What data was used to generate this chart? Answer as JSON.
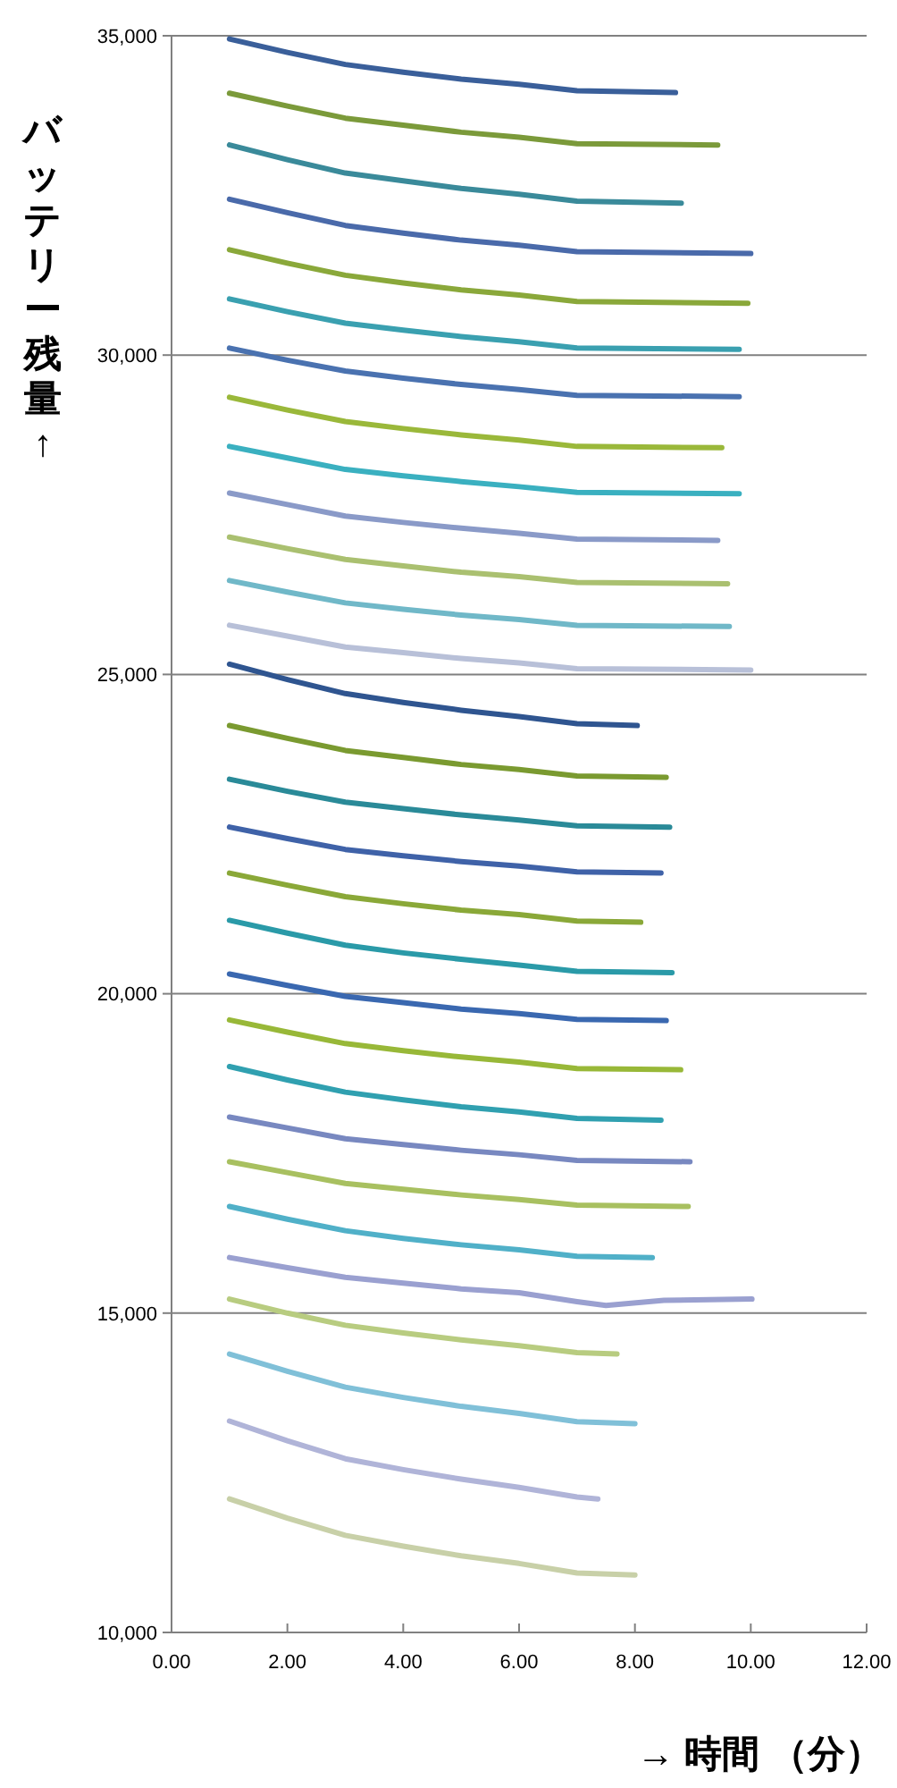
{
  "chart_data": {
    "type": "line",
    "xlabel": "→ 時間 （分）",
    "ylabel": "バッテリー残量 ↑",
    "xlim": [
      0,
      12
    ],
    "xticks": [
      {
        "value": 0,
        "label": "0.00"
      },
      {
        "value": 2,
        "label": "2.00"
      },
      {
        "value": 4,
        "label": "4.00"
      },
      {
        "value": 6,
        "label": "6.00"
      },
      {
        "value": 8,
        "label": "8.00"
      },
      {
        "value": 10,
        "label": "10.00"
      },
      {
        "value": 12,
        "label": "12.00"
      }
    ],
    "ylim": [
      10000,
      35000
    ],
    "yticks": [
      {
        "value": 10000,
        "label": "10,000"
      },
      {
        "value": 15000,
        "label": "15,000"
      },
      {
        "value": 20000,
        "label": "20,000"
      },
      {
        "value": 25000,
        "label": "25,000"
      },
      {
        "value": 30000,
        "label": "30,000"
      },
      {
        "value": 35000,
        "label": "35,000"
      }
    ],
    "grid": "y",
    "marker": "none",
    "line_style": "solid",
    "series": [
      {
        "color": "#3a5f9a",
        "x": [
          1,
          2,
          3,
          4,
          5,
          6,
          7,
          8.7
        ],
        "values": [
          34950,
          34740,
          34550,
          34430,
          34320,
          34240,
          34140,
          34110
        ]
      },
      {
        "color": "#7b9a3a",
        "x": [
          1,
          2,
          3,
          4,
          5,
          6,
          7,
          9.43
        ],
        "values": [
          34100,
          33900,
          33710,
          33600,
          33490,
          33410,
          33310,
          33290
        ]
      },
      {
        "color": "#3a8a9a",
        "x": [
          1,
          2,
          3,
          4,
          5,
          6,
          7,
          8.8
        ],
        "values": [
          33290,
          33060,
          32850,
          32730,
          32610,
          32520,
          32410,
          32380
        ]
      },
      {
        "color": "#4a6aaa",
        "x": [
          1,
          2,
          3,
          4,
          5,
          6,
          7,
          10
        ],
        "values": [
          32440,
          32230,
          32030,
          31910,
          31800,
          31720,
          31620,
          31590
        ]
      },
      {
        "color": "#8aa83a",
        "x": [
          1,
          2,
          3,
          4,
          5,
          6,
          7,
          9.95
        ],
        "values": [
          31650,
          31440,
          31250,
          31130,
          31020,
          30940,
          30840,
          30810
        ]
      },
      {
        "color": "#3aa0b0",
        "x": [
          1,
          2,
          3,
          4,
          5,
          6,
          7,
          9.8
        ],
        "values": [
          30880,
          30680,
          30500,
          30390,
          30290,
          30210,
          30110,
          30090
        ]
      },
      {
        "color": "#4a72b0",
        "x": [
          1,
          2,
          3,
          4,
          5,
          6,
          7,
          9.8
        ],
        "values": [
          30110,
          29920,
          29750,
          29640,
          29540,
          29460,
          29370,
          29350
        ]
      },
      {
        "color": "#9ab83a",
        "x": [
          1,
          2,
          3,
          4,
          5,
          6,
          7,
          9.5
        ],
        "values": [
          29340,
          29140,
          28960,
          28850,
          28750,
          28670,
          28570,
          28550
        ]
      },
      {
        "color": "#3ab0c0",
        "x": [
          1,
          2,
          3,
          4,
          5,
          6,
          7,
          9.8
        ],
        "values": [
          28570,
          28390,
          28210,
          28110,
          28020,
          27940,
          27850,
          27830
        ]
      },
      {
        "color": "#8a9ac8",
        "x": [
          1,
          2,
          3,
          4,
          5,
          6,
          7,
          9.43
        ],
        "values": [
          27840,
          27660,
          27480,
          27380,
          27290,
          27210,
          27120,
          27100
        ]
      },
      {
        "color": "#aac070",
        "x": [
          1,
          2,
          3,
          4,
          5,
          6,
          7,
          9.6
        ],
        "values": [
          27150,
          26970,
          26800,
          26700,
          26600,
          26530,
          26440,
          26420
        ]
      },
      {
        "color": "#70b8c8",
        "x": [
          1,
          2,
          3,
          4,
          5,
          6,
          7,
          9.63
        ],
        "values": [
          26470,
          26290,
          26120,
          26020,
          25930,
          25860,
          25770,
          25750
        ]
      },
      {
        "color": "#b8c0d8",
        "x": [
          1,
          2,
          3,
          4,
          5,
          6,
          7,
          10
        ],
        "values": [
          25770,
          25600,
          25430,
          25340,
          25250,
          25180,
          25090,
          25070
        ]
      },
      {
        "color": "#2f5590",
        "x": [
          1,
          2,
          3,
          4,
          5,
          6,
          7,
          8.04
        ],
        "values": [
          25160,
          24920,
          24700,
          24560,
          24440,
          24340,
          24230,
          24200
        ]
      },
      {
        "color": "#7a9a30",
        "x": [
          1,
          2,
          3,
          4,
          5,
          6,
          7,
          8.54
        ],
        "values": [
          24200,
          24000,
          23810,
          23700,
          23590,
          23510,
          23410,
          23390
        ]
      },
      {
        "color": "#2a8a98",
        "x": [
          1,
          2,
          3,
          4,
          5,
          6,
          7,
          8.6
        ],
        "values": [
          23360,
          23170,
          23000,
          22900,
          22800,
          22720,
          22630,
          22610
        ]
      },
      {
        "color": "#3f62a8",
        "x": [
          1,
          2,
          3,
          4,
          5,
          6,
          7,
          8.45
        ],
        "values": [
          22610,
          22430,
          22260,
          22160,
          22070,
          22000,
          21910,
          21890
        ]
      },
      {
        "color": "#8aa838",
        "x": [
          1,
          2,
          3,
          4,
          5,
          6,
          7,
          8.1
        ],
        "values": [
          21890,
          21700,
          21520,
          21410,
          21310,
          21240,
          21140,
          21120
        ]
      },
      {
        "color": "#2a9aa8",
        "x": [
          1,
          2,
          3,
          4,
          5,
          6,
          7,
          8.64
        ],
        "values": [
          21150,
          20950,
          20760,
          20640,
          20540,
          20450,
          20350,
          20330
        ]
      },
      {
        "color": "#3a68b0",
        "x": [
          1,
          2,
          3,
          4,
          5,
          6,
          7,
          8.54
        ],
        "values": [
          20310,
          20130,
          19960,
          19860,
          19760,
          19690,
          19600,
          19580
        ]
      },
      {
        "color": "#98b838",
        "x": [
          1,
          2,
          3,
          4,
          5,
          6,
          7,
          8.79
        ],
        "values": [
          19590,
          19400,
          19220,
          19110,
          19010,
          18930,
          18830,
          18810
        ]
      },
      {
        "color": "#30a0b0",
        "x": [
          1,
          2,
          3,
          4,
          5,
          6,
          7,
          8.45
        ],
        "values": [
          18860,
          18650,
          18460,
          18340,
          18230,
          18150,
          18050,
          18020
        ]
      },
      {
        "color": "#7888c0",
        "x": [
          1,
          2,
          3,
          4,
          5,
          6,
          7,
          8.95
        ],
        "values": [
          18070,
          17900,
          17730,
          17640,
          17550,
          17480,
          17390,
          17370
        ]
      },
      {
        "color": "#a8c060",
        "x": [
          1,
          2,
          3,
          4,
          5,
          6,
          7,
          8.92
        ],
        "values": [
          17370,
          17200,
          17030,
          16940,
          16850,
          16780,
          16690,
          16670
        ]
      },
      {
        "color": "#50b0c8",
        "x": [
          1,
          2,
          3,
          4,
          5,
          6,
          7,
          8.3
        ],
        "values": [
          16670,
          16470,
          16290,
          16170,
          16070,
          15990,
          15890,
          15870
        ]
      },
      {
        "color": "#9aa0d0",
        "x": [
          1,
          2,
          3,
          4,
          5,
          6,
          7,
          7.5,
          8.5,
          10.02
        ],
        "values": [
          15870,
          15710,
          15560,
          15470,
          15380,
          15320,
          15180,
          15120,
          15200,
          15220
        ]
      },
      {
        "color": "#b8cc80",
        "x": [
          1,
          2,
          3,
          4,
          5,
          6,
          7,
          7.69
        ],
        "values": [
          15220,
          15000,
          14810,
          14690,
          14580,
          14490,
          14380,
          14360
        ]
      },
      {
        "color": "#80c0d8",
        "x": [
          1,
          2,
          3,
          4,
          5,
          6,
          7,
          8
        ],
        "values": [
          14360,
          14090,
          13840,
          13680,
          13540,
          13430,
          13300,
          13270
        ]
      },
      {
        "color": "#b0b4d8",
        "x": [
          1,
          2,
          3,
          4,
          5,
          6,
          7,
          7.36
        ],
        "values": [
          13310,
          13000,
          12720,
          12550,
          12400,
          12270,
          12120,
          12090
        ]
      },
      {
        "color": "#c8d0a8",
        "x": [
          1,
          2,
          3,
          4,
          5,
          6,
          7,
          8
        ],
        "values": [
          12090,
          11790,
          11520,
          11350,
          11200,
          11080,
          10930,
          10900
        ]
      }
    ]
  }
}
